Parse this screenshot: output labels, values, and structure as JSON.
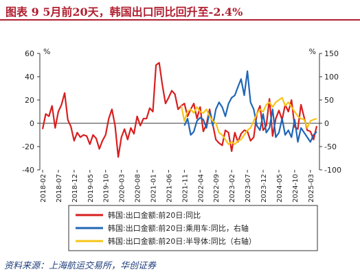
{
  "header": {
    "title": "图表 9   5月前20天，韩国出口同比回升至-2.4%"
  },
  "footer": {
    "source": "资料来源：上海航运交易所，华创证券"
  },
  "chart_data": {
    "type": "line",
    "left_axis": {
      "unit": "%",
      "ylim": [
        -40,
        60
      ],
      "ticks": [
        -40,
        -20,
        0,
        20,
        40,
        60
      ]
    },
    "right_axis": {
      "unit": "%",
      "ylim": [
        -100,
        150
      ],
      "ticks": [
        -100,
        -50,
        0,
        50,
        100,
        150
      ]
    },
    "x_tick_labels": [
      "2018-02",
      "2018-07",
      "2018-12",
      "2019-05",
      "2019-10",
      "2020-03",
      "2020-08",
      "2021-01",
      "2021-06",
      "2021-11",
      "2022-04",
      "2022-09",
      "2023-02",
      "2023-07",
      "2023-12",
      "2024-05",
      "2024-10",
      "2025-03"
    ],
    "x_range": [
      "2018-02",
      "2025-05"
    ],
    "grid": false,
    "legend_position": "bottom",
    "colors": {
      "series1": "#d81e1e",
      "series2": "#1f66b5",
      "series3": "#f5c518"
    },
    "series": [
      {
        "name": "韩国:出口金额:前20日:同比",
        "axis": "left",
        "x": [
          "2018-02",
          "2018-03",
          "2018-04",
          "2018-05",
          "2018-06",
          "2018-07",
          "2018-08",
          "2018-09",
          "2018-10",
          "2018-11",
          "2018-12",
          "2019-01",
          "2019-02",
          "2019-03",
          "2019-04",
          "2019-05",
          "2019-06",
          "2019-07",
          "2019-08",
          "2019-09",
          "2019-10",
          "2019-11",
          "2019-12",
          "2020-01",
          "2020-02",
          "2020-03",
          "2020-04",
          "2020-05",
          "2020-06",
          "2020-07",
          "2020-08",
          "2020-09",
          "2020-10",
          "2020-11",
          "2020-12",
          "2021-01",
          "2021-02",
          "2021-03",
          "2021-04",
          "2021-05",
          "2021-06",
          "2021-07",
          "2021-08",
          "2021-09",
          "2021-10",
          "2021-11",
          "2021-12",
          "2022-01",
          "2022-02",
          "2022-03",
          "2022-04",
          "2022-05",
          "2022-06",
          "2022-07",
          "2022-08",
          "2022-09",
          "2022-10",
          "2022-11",
          "2022-12",
          "2023-01",
          "2023-02",
          "2023-03",
          "2023-04",
          "2023-05",
          "2023-06",
          "2023-07",
          "2023-08",
          "2023-09",
          "2023-10",
          "2023-11",
          "2023-12",
          "2024-01",
          "2024-02",
          "2024-03",
          "2024-04",
          "2024-05",
          "2024-06",
          "2024-07",
          "2024-08",
          "2024-09",
          "2024-10",
          "2024-11",
          "2024-12",
          "2025-01",
          "2025-02",
          "2025-03",
          "2025-04",
          "2025-05"
        ],
        "values": [
          -5,
          8,
          6,
          15,
          -4,
          10,
          16,
          26,
          3,
          -3,
          -15,
          -8,
          -12,
          -10,
          -11,
          -18,
          -10,
          -13,
          -22,
          -15,
          -10,
          4,
          12,
          -2,
          -29,
          -12,
          -5,
          -14,
          -4,
          -9,
          6,
          -2,
          4,
          4,
          13,
          10,
          50,
          52,
          33,
          17,
          22,
          28,
          25,
          12,
          15,
          17,
          6,
          12,
          17,
          4,
          14,
          -7,
          -1,
          12,
          -1,
          -14,
          -17,
          -19,
          -6,
          -8,
          -24,
          -8,
          -16,
          -9,
          -6,
          -7,
          -15,
          -12,
          8,
          15,
          -6,
          -2,
          21,
          -11,
          4,
          11,
          3,
          16,
          10,
          20,
          -3,
          -5,
          16,
          5,
          -6,
          -7,
          -14,
          -2.4
        ]
      },
      {
        "name": "韩国:出口金额:前20日:乘用车:同比，右轴",
        "axis": "right",
        "x": [
          "2021-11",
          "2021-12",
          "2022-01",
          "2022-02",
          "2022-03",
          "2022-04",
          "2022-05",
          "2022-06",
          "2022-07",
          "2022-08",
          "2022-09",
          "2022-10",
          "2022-11",
          "2022-12",
          "2023-01",
          "2023-02",
          "2023-03",
          "2023-04",
          "2023-05",
          "2023-06",
          "2023-07",
          "2023-08",
          "2023-09",
          "2023-10",
          "2023-11",
          "2023-12",
          "2024-01",
          "2024-02",
          "2024-03",
          "2024-04",
          "2024-05",
          "2024-06",
          "2024-07",
          "2024-08",
          "2024-09",
          "2024-10",
          "2024-11",
          "2024-12",
          "2025-01",
          "2025-02",
          "2025-03",
          "2025-04",
          "2025-05"
        ],
        "values": [
          -5,
          10,
          -25,
          -18,
          5,
          12,
          8,
          -10,
          25,
          -5,
          30,
          45,
          35,
          15,
          42,
          55,
          60,
          78,
          95,
          60,
          112,
          45,
          30,
          -5,
          -15,
          20,
          -20,
          -10,
          30,
          -30,
          -20,
          10,
          -25,
          -15,
          -30,
          8,
          -40,
          -10,
          -20,
          -30,
          -40,
          -25,
          -18
        ]
      },
      {
        "name": "韩国:出口金额:前20日:半导体:同比（右轴）",
        "axis": "right",
        "x": [
          "2021-10",
          "2021-11",
          "2021-12",
          "2022-01",
          "2022-02",
          "2022-03",
          "2022-04",
          "2022-05",
          "2022-06",
          "2022-07",
          "2022-08",
          "2022-09",
          "2022-10",
          "2022-11",
          "2022-12",
          "2023-01",
          "2023-02",
          "2023-03",
          "2023-04",
          "2023-05",
          "2023-06",
          "2023-07",
          "2023-08",
          "2023-09",
          "2023-10",
          "2023-11",
          "2023-12",
          "2024-01",
          "2024-02",
          "2024-03",
          "2024-04",
          "2024-05",
          "2024-06",
          "2024-07",
          "2024-08",
          "2024-09",
          "2024-10",
          "2024-11",
          "2024-12",
          "2025-01",
          "2025-02",
          "2025-03",
          "2025-04",
          "2025-05"
        ],
        "values": [
          38,
          5,
          25,
          30,
          22,
          35,
          25,
          22,
          30,
          15,
          5,
          0,
          -20,
          -25,
          -35,
          -45,
          -40,
          -45,
          -38,
          -35,
          -25,
          -15,
          -10,
          5,
          20,
          30,
          25,
          40,
          45,
          35,
          45,
          50,
          55,
          38,
          45,
          35,
          25,
          15,
          10,
          8,
          -10,
          5,
          8,
          10
        ]
      }
    ]
  }
}
